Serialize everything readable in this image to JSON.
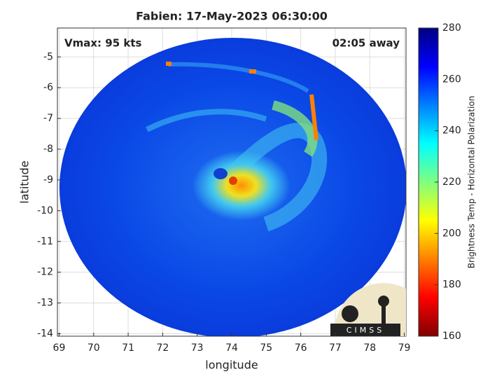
{
  "chart_data": {
    "type": "heatmap",
    "title": "Fabien: 17-May-2023 06:30:00",
    "annotations": [
      "Vmax: 95 kts",
      "02:05 away"
    ],
    "x_label": "longitude",
    "y_label": "latitude",
    "xlim": [
      68.95,
      79.05
    ],
    "xticks": [
      69,
      70,
      71,
      72,
      73,
      74,
      75,
      76,
      77,
      78,
      79
    ],
    "ylim": [
      -14.08,
      -4.06
    ],
    "yticks": [
      -14,
      -13,
      -12,
      -11,
      -10,
      -9,
      -8,
      -7,
      -6,
      -5
    ],
    "grid": true,
    "colorbar": {
      "label": "Brightness Temp - Horizontal Polarization",
      "lim": [
        160,
        280
      ],
      "ticks": [
        160,
        180,
        200,
        220,
        240,
        260,
        280
      ],
      "colors": [
        "#800000",
        "#ff0000",
        "#ff8000",
        "#ffff00",
        "#80ff80",
        "#00ffff",
        "#0080ff",
        "#0000ff",
        "#000080"
      ]
    },
    "logo": "CIMSS"
  }
}
